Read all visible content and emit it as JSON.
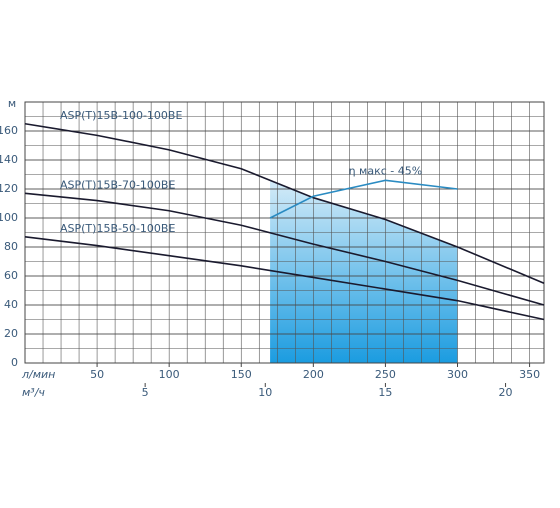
{
  "chart_data": {
    "type": "line",
    "y_unit": "м",
    "x_unit": "л/мин",
    "x2_unit": "м³/ч",
    "xlim": [
      0,
      360
    ],
    "xticks": [
      50,
      100,
      150,
      200,
      250,
      300,
      350
    ],
    "x2lim": [
      0,
      21.6
    ],
    "x2ticks": [
      5,
      10,
      15,
      20
    ],
    "ylim": [
      0,
      180
    ],
    "yticks": [
      0,
      20,
      40,
      60,
      80,
      100,
      120,
      140,
      160
    ],
    "grid": true,
    "series": [
      {
        "name": "ASP(T)15B-100-100BE",
        "color": "#1a1a2e",
        "x": [
          0,
          50,
          100,
          150,
          200,
          250,
          300,
          360
        ],
        "values": [
          165,
          157,
          147,
          134,
          114,
          99,
          80,
          55
        ]
      },
      {
        "name": "ASP(T)15B-70-100BE",
        "color": "#1a1a2e",
        "x": [
          0,
          50,
          100,
          150,
          200,
          250,
          300,
          360
        ],
        "values": [
          117,
          112,
          105,
          95,
          82,
          70,
          57,
          40
        ]
      },
      {
        "name": "ASP(T)15B-50-100BE",
        "color": "#1a1a2e",
        "x": [
          0,
          50,
          100,
          150,
          200,
          250,
          300,
          360
        ],
        "values": [
          87,
          81,
          74,
          67,
          59,
          51,
          43,
          30
        ]
      }
    ],
    "operating_range": [
      170,
      300
    ],
    "efficiency": {
      "label": "η макс - 45%",
      "color": "#2a8bc2",
      "x": [
        170,
        200,
        250,
        300
      ],
      "values": [
        100,
        115,
        126,
        120
      ]
    }
  }
}
